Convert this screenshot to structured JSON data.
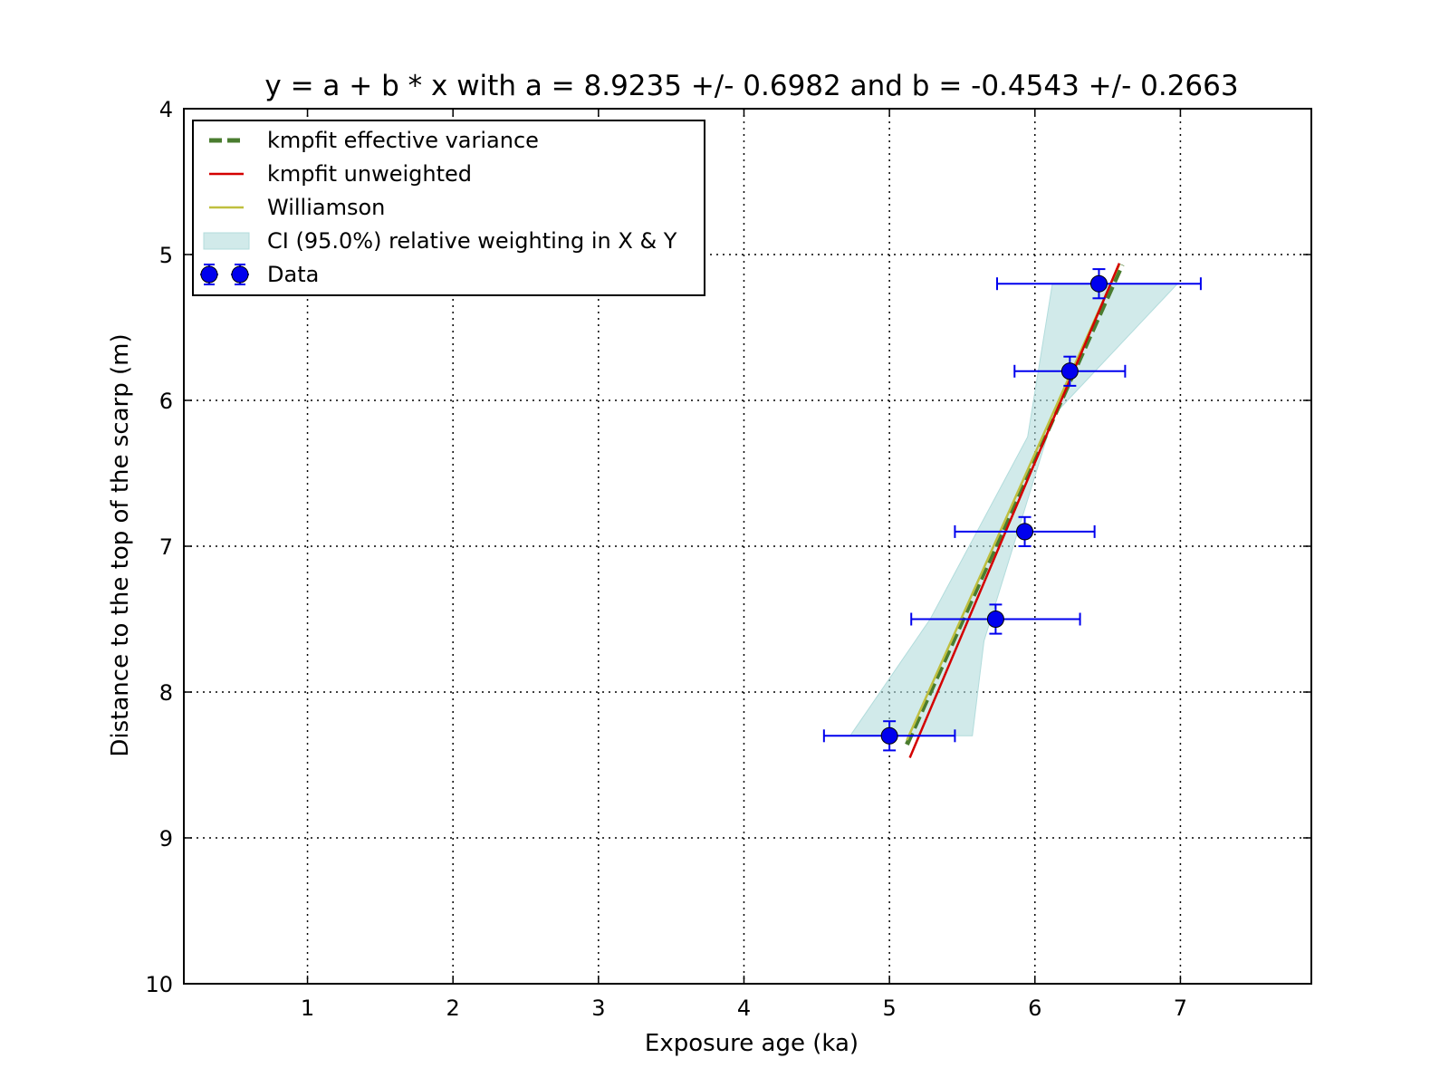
{
  "chart_data": {
    "type": "scatter",
    "title": "y = a + b * x with a = 8.9235 +/- 0.6982 and b = -0.4543 +/- 0.2663",
    "xlabel": "Exposure age (ka)",
    "ylabel": "Distance to the top of the scarp (m)",
    "xlim": [
      0.15,
      7.9
    ],
    "ylim": [
      10,
      4
    ],
    "y_inverted": true,
    "xticks": [
      1,
      2,
      3,
      4,
      5,
      6,
      7
    ],
    "yticks": [
      4,
      5,
      6,
      7,
      8,
      9,
      10
    ],
    "grid": true,
    "grid_style": "dotted",
    "legend_position": "top-left",
    "series": [
      {
        "name": "kmpfit effective variance",
        "kind": "line",
        "style": "dashed",
        "color": "#4a7c2f",
        "x": [
          5.12,
          6.6
        ],
        "y": [
          8.36,
          5.07
        ]
      },
      {
        "name": "kmpfit unweighted",
        "kind": "line",
        "style": "solid",
        "color": "#d40000",
        "x": [
          5.14,
          6.58
        ],
        "y": [
          8.45,
          5.06
        ]
      },
      {
        "name": "Williamson",
        "kind": "line",
        "style": "solid",
        "color": "#bfbf3f",
        "x": [
          5.12,
          6.58
        ],
        "y": [
          8.33,
          5.07
        ]
      },
      {
        "name": "CI (95.0%) relative weighting in X & Y",
        "kind": "band",
        "color": "#b2dcdc",
        "polygon": [
          [
            6.12,
            5.2
          ],
          [
            6.98,
            5.2
          ],
          [
            6.13,
            6.1
          ],
          [
            5.65,
            7.65
          ],
          [
            5.57,
            8.3
          ],
          [
            4.73,
            8.3
          ],
          [
            5.28,
            7.5
          ],
          [
            5.95,
            6.25
          ]
        ]
      },
      {
        "name": "Data",
        "kind": "errorbar",
        "color": "#0000ee",
        "points": [
          {
            "x": 6.44,
            "y": 5.2,
            "xerr": 0.7,
            "yerr": 0.1
          },
          {
            "x": 6.24,
            "y": 5.8,
            "xerr": 0.38,
            "yerr": 0.1
          },
          {
            "x": 5.93,
            "y": 6.9,
            "xerr": 0.48,
            "yerr": 0.1
          },
          {
            "x": 5.73,
            "y": 7.5,
            "xerr": 0.58,
            "yerr": 0.1
          },
          {
            "x": 5.0,
            "y": 8.3,
            "xerr": 0.45,
            "yerr": 0.1
          }
        ]
      }
    ]
  }
}
